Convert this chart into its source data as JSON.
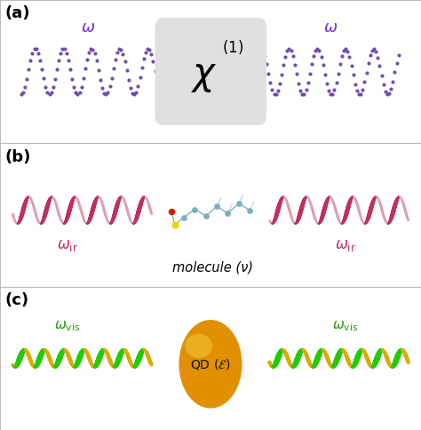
{
  "bg_color": "#ffffff",
  "border_color": "#bbbbbb",
  "panel_labels": [
    "(a)",
    "(b)",
    "(c)"
  ],
  "panel_label_color": "#000000",
  "panel_label_fontsize": 13,
  "panel_label_fontweight": "bold",
  "panel_a": {
    "wave_color": "#6644aa",
    "wave_label_color": "#7733cc",
    "box_color": "#e0e0e0",
    "box_text_color": "#000000"
  },
  "panel_b": {
    "wave_color_outer": "#c0305a",
    "wave_color_inner": "#dda0b0",
    "wave_label_color": "#c0305a",
    "molecule_label_color": "#000000",
    "molecule_label": "molecule (ν)"
  },
  "panel_c": {
    "wave_color_outer": "#22cc00",
    "wave_color_inner": "#ddaa00",
    "wave_label_color": "#229900",
    "qd_color_outer": "#e09000",
    "qd_color_inner": "#f5c840",
    "qd_label": "QD (ε)",
    "qd_label_color": "#111111"
  }
}
